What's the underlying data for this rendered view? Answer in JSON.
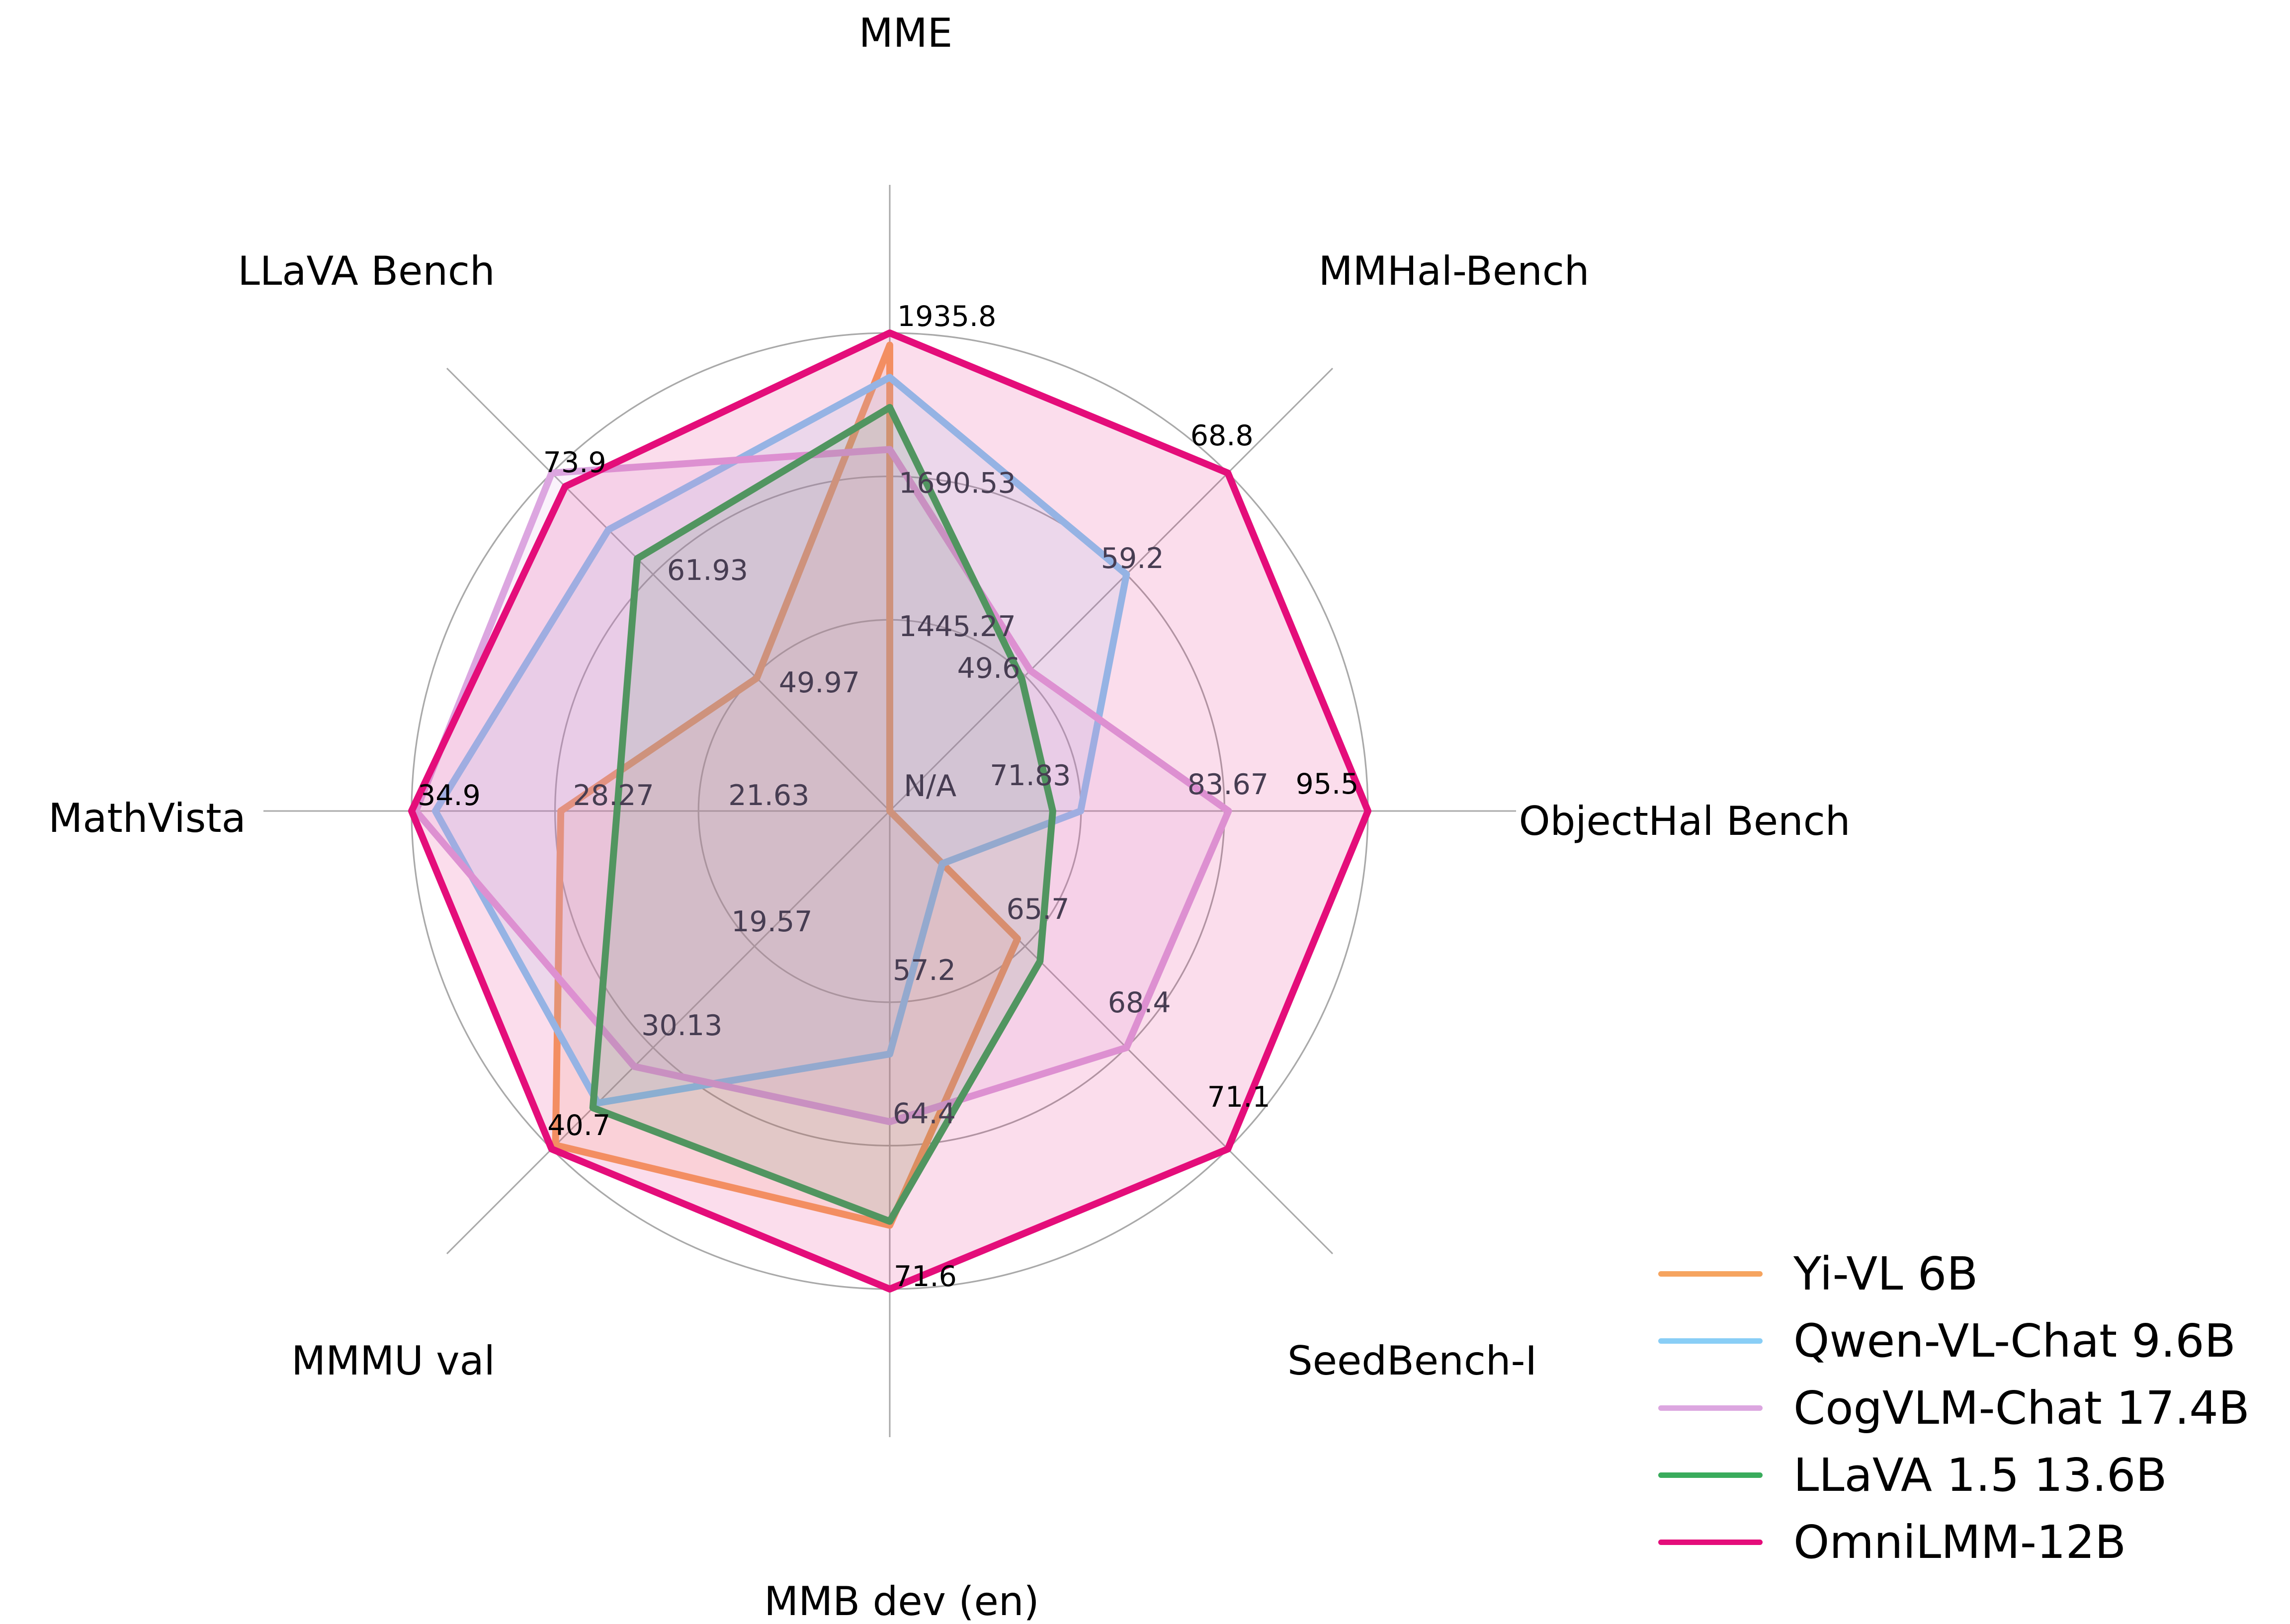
{
  "chart_data": {
    "type": "radar",
    "center_label": "N/A",
    "tick_rings": [
      1.0,
      0.7,
      0.4
    ],
    "grid": true,
    "legend_position": "bottom-right",
    "axes": [
      {
        "label": "MME",
        "min": 1200,
        "max": 1935.8,
        "ticks": [
          "1935.8",
          "1690.53",
          "1445.27"
        ]
      },
      {
        "label": "MMHal-Bench",
        "min": 40,
        "max": 68.8,
        "ticks": [
          "68.8",
          "59.2",
          "49.6"
        ]
      },
      {
        "label": "ObjectHal Bench",
        "min": 60,
        "max": 95.5,
        "ticks": [
          "95.5",
          "83.67",
          "71.83"
        ]
      },
      {
        "label": "SeedBench-I",
        "min": 63,
        "max": 71.1,
        "ticks": [
          "71.1",
          "68.4",
          "65.7"
        ]
      },
      {
        "label": "MMB dev (en)",
        "min": 50,
        "max": 71.6,
        "ticks": [
          "71.6",
          "64.4",
          "57.2"
        ]
      },
      {
        "label": "MMMU val",
        "min": 9,
        "max": 40.7,
        "ticks": [
          "40.7",
          "30.13",
          "19.57"
        ]
      },
      {
        "label": "MathVista",
        "min": 15,
        "max": 34.9,
        "ticks": [
          "34.9",
          "28.27",
          "21.63"
        ]
      },
      {
        "label": "LLaVA Bench",
        "min": 38,
        "max": 73.9,
        "ticks": [
          "73.9",
          "61.93",
          "49.97"
        ]
      }
    ],
    "series": [
      {
        "name": "Yi-VL 6B",
        "color": "#F6A45F",
        "values": [
          1915.1,
          null,
          null,
          65.5,
          68.4,
          40.3,
          28.0,
          49.7
        ]
      },
      {
        "name": "Qwen-VL-Chat 9.6B",
        "color": "#89CEF6",
        "values": [
          1860.0,
          59.2,
          71.8,
          63.5,
          59.8,
          35.9,
          33.8,
          67.2
        ]
      },
      {
        "name": "CogVLM-Chat 17.4B",
        "color": "#DCA6E0",
        "values": [
          1736.6,
          50.1,
          84.0,
          68.4,
          63.2,
          32.1,
          34.7,
          73.9
        ]
      },
      {
        "name": "LLaVA 1.5 13.6B",
        "color": "#3AAC5C",
        "values": [
          1808.4,
          49.3,
          69.5,
          66.1,
          68.2,
          36.4,
          25.4,
          63.8
        ]
      },
      {
        "name": "OmniLMM-12B",
        "color": "#E40D7A",
        "values": [
          1935.8,
          68.8,
          95.5,
          71.1,
          71.6,
          40.7,
          34.9,
          72.3
        ]
      }
    ]
  }
}
